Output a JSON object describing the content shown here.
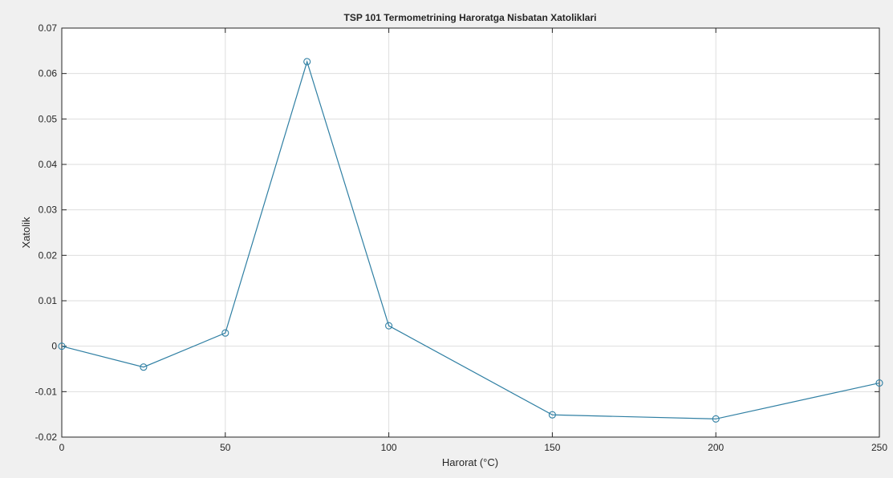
{
  "window": {
    "background": "#f0f0f0"
  },
  "chart_data": {
    "type": "line",
    "title": "TSP 101 Termometrining Haroratga Nisbatan Xatoliklari",
    "xlabel": "Harorat (°C)",
    "ylabel": "Xatolik",
    "xlim": [
      0,
      250
    ],
    "ylim": [
      -0.02,
      0.07
    ],
    "xticks": [
      0,
      50,
      100,
      150,
      200,
      250
    ],
    "xtick_labels": [
      "0",
      "50",
      "100",
      "150",
      "200",
      "250"
    ],
    "yticks": [
      -0.02,
      -0.01,
      0,
      0.01,
      0.02,
      0.03,
      0.04,
      0.05,
      0.06,
      0.07
    ],
    "ytick_labels": [
      "-0.02",
      "-0.01",
      "0",
      "0.01",
      "0.02",
      "0.03",
      "0.04",
      "0.05",
      "0.06",
      "0.07"
    ],
    "grid": true,
    "marker": "circle",
    "series": [
      {
        "color": "#2f7fa3",
        "x": [
          0,
          25,
          50,
          75,
          100,
          150,
          200,
          250
        ],
        "y": [
          0.0,
          -0.0046,
          0.0029,
          0.0626,
          0.0045,
          -0.0151,
          -0.016,
          -0.0081
        ]
      }
    ]
  }
}
